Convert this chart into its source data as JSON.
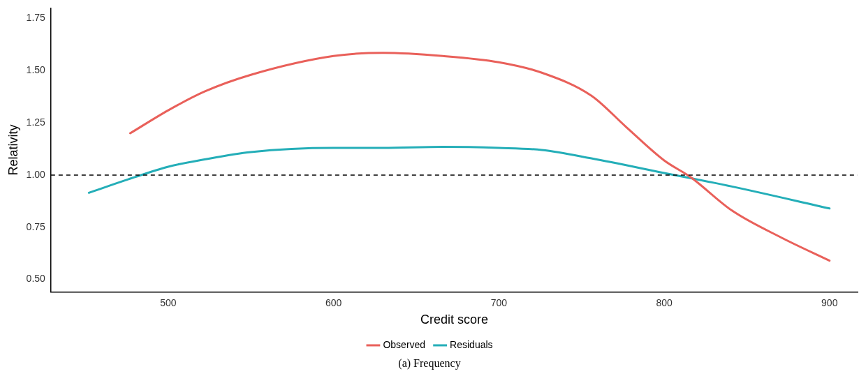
{
  "chart_data": {
    "type": "line",
    "xlabel": "Credit score",
    "ylabel": "Relativity",
    "annotations": [
      "(a) Frequency"
    ],
    "xlim": [
      429,
      917
    ],
    "ylim": [
      0.44,
      1.8
    ],
    "xticks": [
      500,
      600,
      700,
      800,
      900
    ],
    "yticks": [
      {
        "value": 0.5,
        "label": "0.50"
      },
      {
        "value": 0.75,
        "label": "0.75"
      },
      {
        "value": 1,
        "label": "1.00"
      },
      {
        "value": 1.25,
        "label": "1.25"
      },
      {
        "value": 1.5,
        "label": "1.50"
      },
      {
        "value": 1.75,
        "label": "1.75"
      }
    ],
    "grid": false,
    "legend": "bottom",
    "marker": "none",
    "line_style": "solid",
    "ref_lines": [
      {
        "axis": "y",
        "value": 1,
        "line_style": "dashed",
        "color": "#000000"
      }
    ],
    "series": [
      {
        "name": "Observed",
        "color": "#e9605a",
        "x": [
          477,
          500,
          522,
          550,
          600,
          630,
          666,
          700,
          726,
          756,
          777,
          800,
          816,
          841,
          871,
          900
        ],
        "values": [
          1.2,
          1.31,
          1.4,
          1.48,
          1.57,
          1.585,
          1.57,
          1.54,
          1.49,
          1.38,
          1.23,
          1.07,
          0.99,
          0.83,
          0.7,
          0.59
        ]
      },
      {
        "name": "Residuals",
        "color": "#24aeb8",
        "x": [
          452,
          476,
          500,
          522,
          550,
          600,
          630,
          666,
          700,
          726,
          756,
          800,
          841,
          900
        ],
        "values": [
          0.915,
          0.98,
          1.04,
          1.075,
          1.11,
          1.13,
          1.13,
          1.135,
          1.13,
          1.12,
          1.08,
          1.01,
          0.945,
          0.84
        ]
      }
    ]
  }
}
